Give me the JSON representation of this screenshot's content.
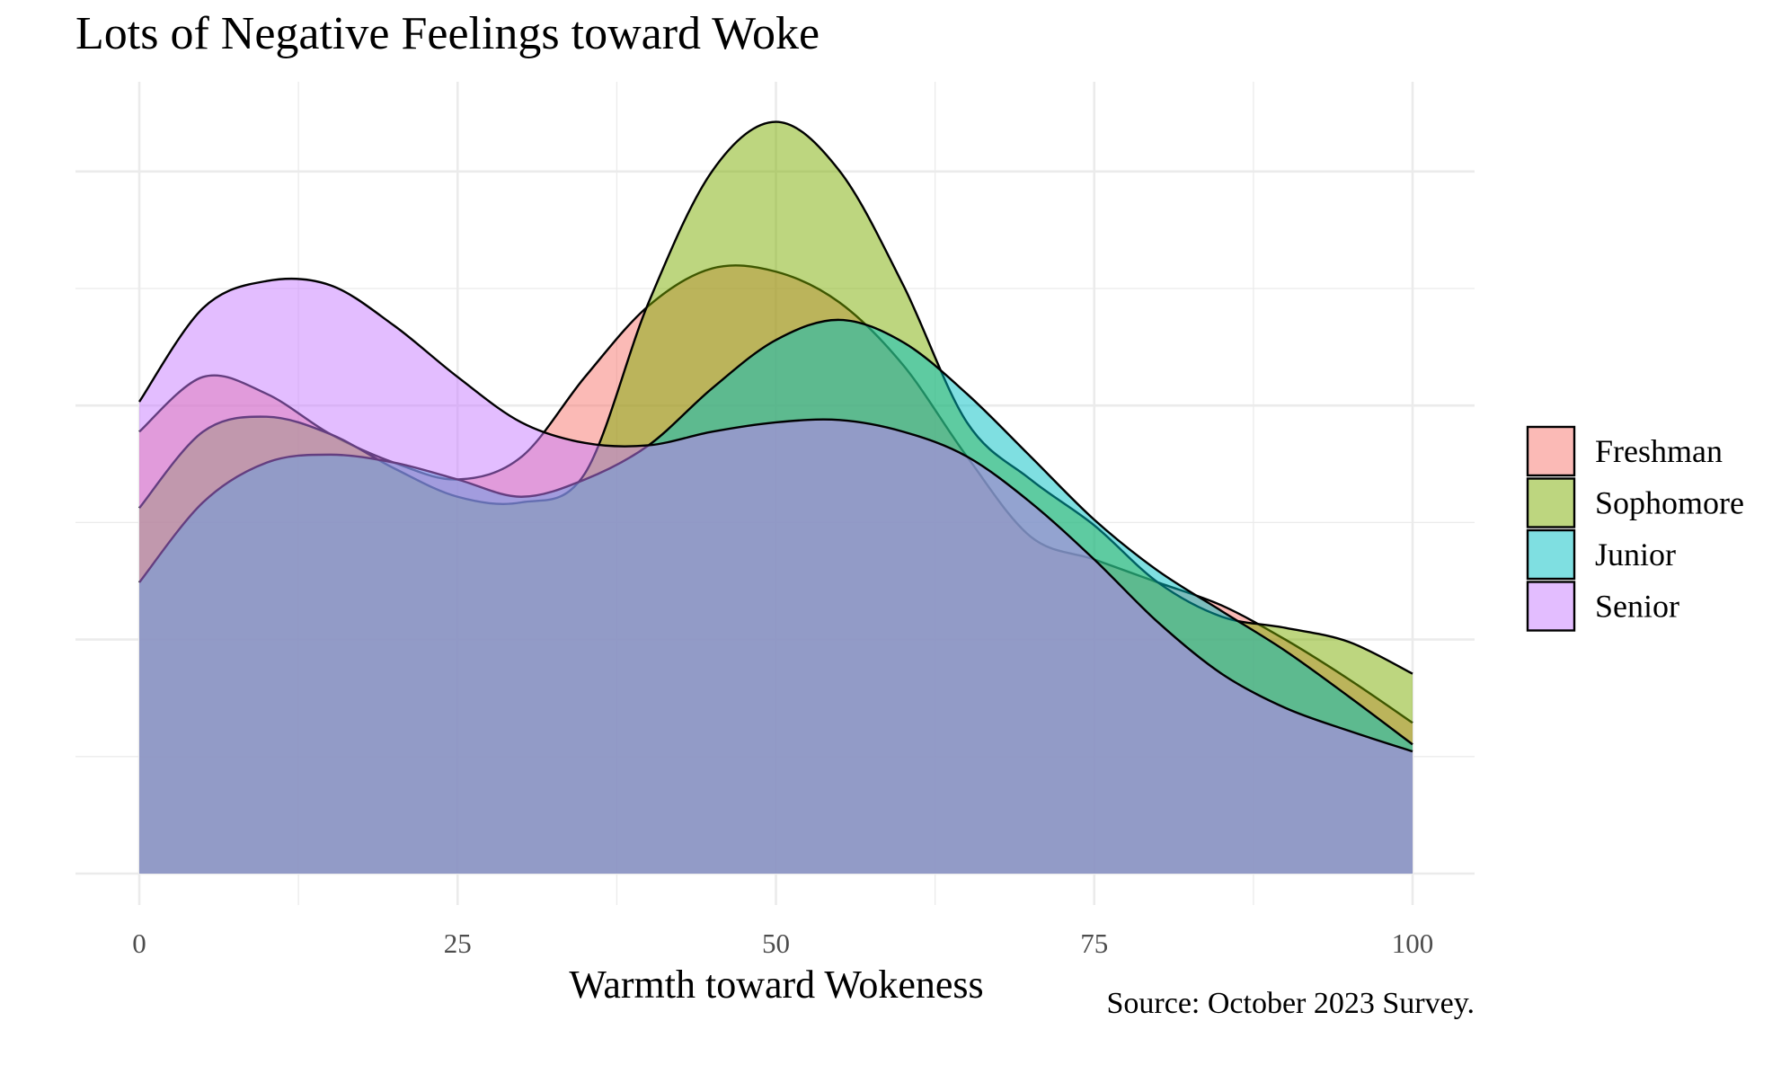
{
  "chart_data": {
    "type": "area",
    "subtype": "density",
    "title": "Lots of Negative Feelings toward Woke",
    "xlabel": "Warmth toward Wokeness",
    "ylabel": "",
    "caption": "Source: October 2023 Survey.",
    "xlim": [
      0,
      100
    ],
    "ylim": [
      0,
      0.0169
    ],
    "x_ticks": [
      "0",
      "25",
      "50",
      "75",
      "100"
    ],
    "x_tick_values": [
      0,
      25,
      50,
      75,
      100
    ],
    "y_ticks_shown": false,
    "grid": true,
    "legend_position": "right",
    "x": [
      0,
      5,
      10,
      15,
      20,
      25,
      30,
      35,
      40,
      45,
      50,
      55,
      60,
      65,
      70,
      75,
      80,
      85,
      90,
      95,
      100
    ],
    "series": [
      {
        "name": "Freshman",
        "color": "#F8766D",
        "values": [
          0.00944,
          0.01061,
          0.01025,
          0.00939,
          0.00878,
          0.00842,
          0.0089,
          0.01061,
          0.01213,
          0.01293,
          0.01286,
          0.0122,
          0.01086,
          0.00891,
          0.0072,
          0.00671,
          0.00622,
          0.00573,
          0.005,
          0.00415,
          0.00322
        ]
      },
      {
        "name": "Sophomore",
        "color": "#7CAE00",
        "values": [
          0.00781,
          0.00944,
          0.00976,
          0.00939,
          0.00866,
          0.00805,
          0.00793,
          0.00855,
          0.0122,
          0.01501,
          0.01606,
          0.01501,
          0.01257,
          0.00964,
          0.00842,
          0.00744,
          0.00622,
          0.00549,
          0.00525,
          0.00495,
          0.00427
        ]
      },
      {
        "name": "Junior",
        "color": "#00BFC4",
        "values": [
          0.00622,
          0.00793,
          0.00878,
          0.00895,
          0.00878,
          0.00842,
          0.00805,
          0.00842,
          0.00915,
          0.01037,
          0.0114,
          0.01183,
          0.01135,
          0.01025,
          0.00891,
          0.00756,
          0.00647,
          0.00561,
          0.00476,
          0.00378,
          0.00276
        ]
      },
      {
        "name": "Senior",
        "color": "#C77CFF",
        "values": [
          0.01008,
          0.01208,
          0.01266,
          0.01257,
          0.01171,
          0.01061,
          0.00964,
          0.0092,
          0.00915,
          0.00944,
          0.00964,
          0.00969,
          0.00944,
          0.00891,
          0.00793,
          0.00671,
          0.00537,
          0.00427,
          0.00354,
          0.00305,
          0.00261
        ]
      }
    ],
    "fill_alpha": 0.5
  }
}
